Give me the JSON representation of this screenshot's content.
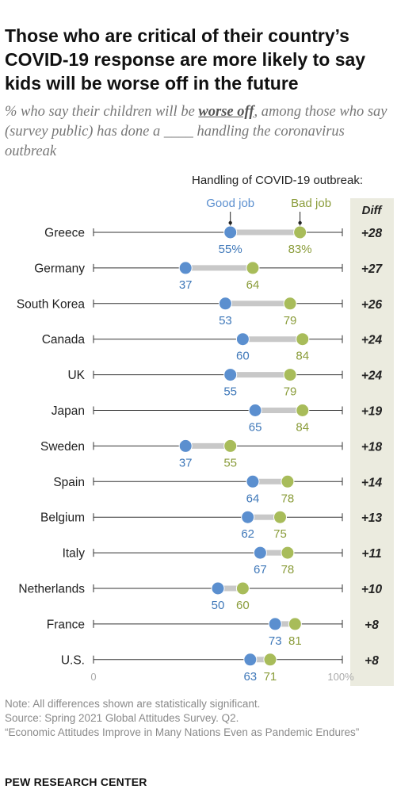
{
  "title": "Those who are critical of their country’s COVID-19 response are more likely to say kids will be worse off in the future",
  "subtitle": {
    "pre": "% who say their children will be ",
    "emph": "worse off",
    "post": ", among those who say (survey public) has done a ____ handling the coronavirus outbreak"
  },
  "chart_data": {
    "type": "dot",
    "title": "Handling of COVID-19 outbreak:",
    "xlim": [
      0,
      100
    ],
    "x_tick_labels": [
      "0",
      "100%"
    ],
    "diff_header": "Diff",
    "colors": {
      "good": "#5b8fcf",
      "bad": "#a8bc5a",
      "diff_panel": "#ebebdf"
    },
    "categories": [
      "Greece",
      "Germany",
      "South Korea",
      "Canada",
      "UK",
      "Japan",
      "Sweden",
      "Spain",
      "Belgium",
      "Italy",
      "Netherlands",
      "France",
      "U.S."
    ],
    "series": [
      {
        "name": "Good job",
        "values": [
          55,
          37,
          53,
          60,
          55,
          65,
          37,
          64,
          62,
          67,
          50,
          73,
          63
        ],
        "labels": [
          "55%",
          "37",
          "53",
          "60",
          "55",
          "65",
          "37",
          "64",
          "62",
          "67",
          "50",
          "73",
          "63"
        ]
      },
      {
        "name": "Bad job",
        "values": [
          83,
          64,
          79,
          84,
          79,
          84,
          55,
          78,
          75,
          78,
          60,
          81,
          71
        ],
        "labels": [
          "83%",
          "64",
          "79",
          "84",
          "79",
          "84",
          "55",
          "78",
          "75",
          "78",
          "60",
          "81",
          "71"
        ]
      }
    ],
    "diff": [
      "+28",
      "+27",
      "+26",
      "+24",
      "+24",
      "+19",
      "+18",
      "+14",
      "+13",
      "+11",
      "+10",
      "+8",
      "+8"
    ]
  },
  "footer": {
    "note": "Note: All differences shown are statistically significant.",
    "source": "Source: Spring 2021 Global Attitudes Survey. Q2.",
    "report": "“Economic Attitudes Improve in Many Nations Even as Pandemic Endures”"
  },
  "brand": "PEW RESEARCH CENTER"
}
